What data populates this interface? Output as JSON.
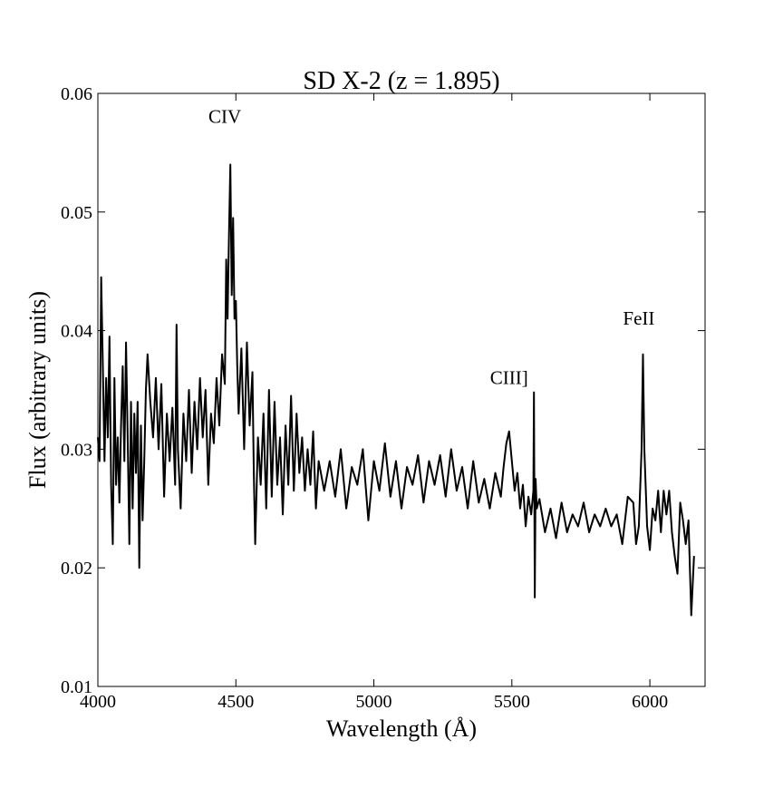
{
  "chart_data": {
    "type": "line",
    "title": "SD X-2 (z = 1.895)",
    "x_label": "Wavelength (Å)",
    "y_label": "Flux (arbitrary units)",
    "color": "#000000",
    "xlim": [
      4000,
      6200
    ],
    "ylim": [
      0.01,
      0.06
    ],
    "xticks": [
      4000,
      4500,
      5000,
      5500,
      6000
    ],
    "yticks": [
      0.01,
      0.02,
      0.03,
      0.04,
      0.05,
      0.06
    ],
    "annotations": [
      {
        "text": "CIV",
        "x": 4460,
        "y": 0.0575
      },
      {
        "text": "CIII]",
        "x": 5490,
        "y": 0.0355
      },
      {
        "text": "FeII",
        "x": 5960,
        "y": 0.0405
      }
    ],
    "x": [
      4000,
      4006,
      4012,
      4018,
      4024,
      4030,
      4036,
      4042,
      4048,
      4054,
      4060,
      4066,
      4072,
      4078,
      4084,
      4090,
      4096,
      4102,
      4108,
      4114,
      4120,
      4126,
      4132,
      4138,
      4144,
      4150,
      4156,
      4162,
      4168,
      4174,
      4180,
      4190,
      4200,
      4210,
      4220,
      4230,
      4240,
      4250,
      4260,
      4270,
      4280,
      4285,
      4290,
      4300,
      4310,
      4320,
      4330,
      4340,
      4350,
      4360,
      4370,
      4380,
      4390,
      4400,
      4410,
      4420,
      4430,
      4440,
      4450,
      4460,
      4465,
      4470,
      4475,
      4480,
      4485,
      4490,
      4495,
      4500,
      4505,
      4510,
      4520,
      4530,
      4540,
      4550,
      4560,
      4565,
      4570,
      4580,
      4590,
      4600,
      4610,
      4620,
      4630,
      4640,
      4650,
      4660,
      4670,
      4680,
      4690,
      4700,
      4710,
      4720,
      4730,
      4740,
      4750,
      4760,
      4770,
      4780,
      4790,
      4800,
      4820,
      4840,
      4860,
      4880,
      4900,
      4920,
      4940,
      4960,
      4980,
      5000,
      5020,
      5040,
      5060,
      5080,
      5100,
      5120,
      5140,
      5160,
      5180,
      5200,
      5220,
      5240,
      5260,
      5280,
      5300,
      5320,
      5340,
      5360,
      5380,
      5400,
      5420,
      5440,
      5460,
      5470,
      5480,
      5490,
      5500,
      5510,
      5520,
      5530,
      5540,
      5550,
      5560,
      5570,
      5578,
      5580,
      5583,
      5586,
      5590,
      5600,
      5620,
      5640,
      5660,
      5680,
      5700,
      5720,
      5740,
      5760,
      5780,
      5800,
      5820,
      5840,
      5860,
      5880,
      5900,
      5920,
      5940,
      5950,
      5960,
      5970,
      5975,
      5980,
      5990,
      6000,
      6010,
      6020,
      6030,
      6040,
      6050,
      6060,
      6070,
      6080,
      6090,
      6100,
      6110,
      6120,
      6130,
      6140,
      6150,
      6160
    ],
    "values": [
      0.031,
      0.029,
      0.0445,
      0.037,
      0.029,
      0.036,
      0.031,
      0.0395,
      0.027,
      0.022,
      0.036,
      0.027,
      0.031,
      0.0255,
      0.032,
      0.037,
      0.029,
      0.039,
      0.031,
      0.022,
      0.034,
      0.025,
      0.033,
      0.028,
      0.034,
      0.02,
      0.032,
      0.024,
      0.029,
      0.035,
      0.038,
      0.034,
      0.031,
      0.036,
      0.03,
      0.0355,
      0.026,
      0.033,
      0.029,
      0.0335,
      0.027,
      0.0405,
      0.03,
      0.025,
      0.033,
      0.029,
      0.035,
      0.028,
      0.034,
      0.03,
      0.036,
      0.031,
      0.035,
      0.027,
      0.033,
      0.0305,
      0.036,
      0.032,
      0.038,
      0.0355,
      0.046,
      0.041,
      0.048,
      0.054,
      0.043,
      0.0495,
      0.041,
      0.0425,
      0.037,
      0.033,
      0.0385,
      0.03,
      0.039,
      0.032,
      0.0365,
      0.028,
      0.022,
      0.031,
      0.027,
      0.033,
      0.025,
      0.035,
      0.026,
      0.034,
      0.027,
      0.031,
      0.0245,
      0.032,
      0.027,
      0.0345,
      0.0265,
      0.033,
      0.028,
      0.031,
      0.0265,
      0.03,
      0.027,
      0.0315,
      0.025,
      0.029,
      0.0265,
      0.029,
      0.026,
      0.03,
      0.025,
      0.0285,
      0.027,
      0.03,
      0.024,
      0.029,
      0.0265,
      0.0305,
      0.026,
      0.029,
      0.025,
      0.0285,
      0.027,
      0.0295,
      0.0255,
      0.029,
      0.027,
      0.0295,
      0.026,
      0.03,
      0.0265,
      0.0285,
      0.025,
      0.029,
      0.0255,
      0.0275,
      0.025,
      0.028,
      0.026,
      0.0285,
      0.0305,
      0.0315,
      0.029,
      0.0265,
      0.028,
      0.025,
      0.027,
      0.0235,
      0.026,
      0.0245,
      0.0265,
      0.0348,
      0.0175,
      0.0275,
      0.025,
      0.0258,
      0.023,
      0.025,
      0.0225,
      0.0255,
      0.023,
      0.0245,
      0.0235,
      0.0255,
      0.023,
      0.0245,
      0.0235,
      0.025,
      0.0235,
      0.0245,
      0.022,
      0.026,
      0.0255,
      0.022,
      0.0235,
      0.03,
      0.038,
      0.03,
      0.0235,
      0.0215,
      0.025,
      0.024,
      0.0265,
      0.023,
      0.0265,
      0.0245,
      0.0265,
      0.023,
      0.021,
      0.0195,
      0.0255,
      0.024,
      0.022,
      0.024,
      0.016,
      0.021
    ]
  }
}
